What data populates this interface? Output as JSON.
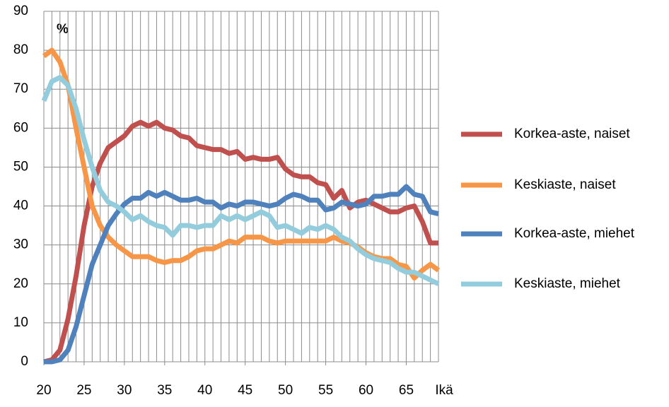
{
  "chart_data": {
    "type": "line",
    "annotation": "%",
    "xlabel": "Ikä",
    "x": [
      20,
      21,
      22,
      23,
      24,
      25,
      26,
      27,
      28,
      29,
      30,
      31,
      32,
      33,
      34,
      35,
      36,
      37,
      38,
      39,
      40,
      41,
      42,
      43,
      44,
      45,
      46,
      47,
      48,
      49,
      50,
      51,
      52,
      53,
      54,
      55,
      56,
      57,
      58,
      59,
      60,
      61,
      62,
      63,
      64,
      65,
      66,
      67,
      68,
      69
    ],
    "xlim": [
      20,
      69
    ],
    "xticks": [
      20,
      25,
      30,
      35,
      40,
      45,
      50,
      55,
      60,
      65
    ],
    "ylim": [
      0,
      90
    ],
    "yticks": [
      0,
      10,
      20,
      30,
      40,
      50,
      60,
      70,
      80,
      90
    ],
    "grid": true,
    "legend": "right",
    "series": [
      {
        "name": "Korkea-aste, naiset",
        "color": "#c0504d",
        "values": [
          0,
          0.5,
          3,
          11,
          22,
          35,
          45,
          51,
          55,
          56.5,
          58,
          60.5,
          61.5,
          60.5,
          61.5,
          60,
          59.5,
          58,
          57.5,
          55.5,
          55,
          54.5,
          54.5,
          53.5,
          54,
          52,
          52.5,
          52,
          52,
          52.5,
          49.5,
          48,
          47.5,
          47.5,
          46,
          45.5,
          42,
          44,
          39.5,
          41,
          41.5,
          40.5,
          39.5,
          38.5,
          38.5,
          39.5,
          40,
          36,
          30.5,
          30.5
        ]
      },
      {
        "name": "Keskiaste, naiset",
        "color": "#f79646",
        "values": [
          78.5,
          80,
          77,
          71,
          60,
          50,
          40,
          35,
          32,
          30,
          28.5,
          27,
          27,
          27,
          26,
          25.5,
          26,
          26,
          27,
          28.5,
          29,
          29,
          30,
          31,
          30.5,
          32,
          32,
          32,
          31,
          30.5,
          31,
          31,
          31,
          31,
          31,
          31,
          32,
          31,
          30.5,
          29.5,
          28,
          27,
          26.5,
          26.5,
          25,
          24.5,
          21.5,
          23.5,
          25,
          23.5
        ]
      },
      {
        "name": "Korkea-aste, miehet",
        "color": "#4f81bd",
        "values": [
          0,
          0,
          0.5,
          3,
          9,
          17,
          25,
          30,
          35,
          38,
          40.5,
          42,
          42,
          43.5,
          42.5,
          43.5,
          42.5,
          41.5,
          41.5,
          42,
          41,
          41,
          39.5,
          40.5,
          40,
          41,
          41,
          40.5,
          40,
          40.5,
          42,
          43,
          42.5,
          41.5,
          41.5,
          39,
          39.5,
          41,
          40.5,
          40,
          40.5,
          42.5,
          42.5,
          43,
          43,
          45,
          43,
          42.5,
          38.5,
          38
        ]
      },
      {
        "name": "Keskiaste, miehet",
        "color": "#93cddd",
        "values": [
          67,
          72,
          73,
          71,
          65,
          57,
          50,
          44,
          41,
          40,
          38.5,
          36.5,
          37.5,
          36,
          35,
          34.5,
          32.5,
          35,
          35,
          34.5,
          35,
          35,
          37.5,
          36.5,
          37.5,
          36.5,
          37.5,
          38.5,
          37.5,
          34.5,
          35,
          34,
          33,
          34.5,
          34,
          35,
          34,
          32,
          31,
          29,
          27.5,
          26.5,
          26,
          25.5,
          24,
          23,
          23,
          22,
          21,
          20
        ]
      }
    ]
  }
}
